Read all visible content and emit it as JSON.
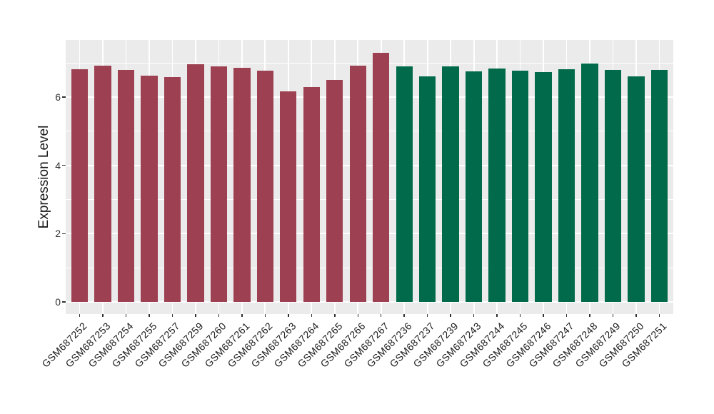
{
  "chart_data": {
    "type": "bar",
    "title": "",
    "xlabel": "",
    "ylabel": "Expression Level",
    "y_ticks": [
      0,
      2,
      4,
      6
    ],
    "y_minor_ticks": [
      1,
      3,
      5,
      7
    ],
    "ylim": [
      -0.37,
      7.67
    ],
    "grid": "white major and minor gridlines on gray panel",
    "legend_position": "none",
    "panel_background": "#EBEBEB",
    "gridline_color": "#FFFFFF",
    "tick_color": "#333333",
    "group_colors": {
      "maroon": "#9D4152",
      "green": "#016A4B"
    },
    "bars": [
      {
        "label": "GSM687252",
        "value": 6.82,
        "group": "maroon"
      },
      {
        "label": "GSM687253",
        "value": 6.93,
        "group": "maroon"
      },
      {
        "label": "GSM687254",
        "value": 6.8,
        "group": "maroon"
      },
      {
        "label": "GSM687255",
        "value": 6.63,
        "group": "maroon"
      },
      {
        "label": "GSM687257",
        "value": 6.59,
        "group": "maroon"
      },
      {
        "label": "GSM687259",
        "value": 6.96,
        "group": "maroon"
      },
      {
        "label": "GSM687260",
        "value": 6.9,
        "group": "maroon"
      },
      {
        "label": "GSM687261",
        "value": 6.86,
        "group": "maroon"
      },
      {
        "label": "GSM687262",
        "value": 6.78,
        "group": "maroon"
      },
      {
        "label": "GSM687263",
        "value": 6.16,
        "group": "maroon"
      },
      {
        "label": "GSM687264",
        "value": 6.3,
        "group": "maroon"
      },
      {
        "label": "GSM687265",
        "value": 6.51,
        "group": "maroon"
      },
      {
        "label": "GSM687266",
        "value": 6.92,
        "group": "maroon"
      },
      {
        "label": "GSM687267",
        "value": 7.3,
        "group": "maroon"
      },
      {
        "label": "GSM687236",
        "value": 6.9,
        "group": "green"
      },
      {
        "label": "GSM687237",
        "value": 6.6,
        "group": "green"
      },
      {
        "label": "GSM687239",
        "value": 6.91,
        "group": "green"
      },
      {
        "label": "GSM687243",
        "value": 6.75,
        "group": "green"
      },
      {
        "label": "GSM687244",
        "value": 6.84,
        "group": "green"
      },
      {
        "label": "GSM687245",
        "value": 6.77,
        "group": "green"
      },
      {
        "label": "GSM687246",
        "value": 6.73,
        "group": "green"
      },
      {
        "label": "GSM687247",
        "value": 6.82,
        "group": "green"
      },
      {
        "label": "GSM687248",
        "value": 6.98,
        "group": "green"
      },
      {
        "label": "GSM687249",
        "value": 6.8,
        "group": "green"
      },
      {
        "label": "GSM687250",
        "value": 6.61,
        "group": "green"
      },
      {
        "label": "GSM687251",
        "value": 6.79,
        "group": "green"
      }
    ]
  }
}
